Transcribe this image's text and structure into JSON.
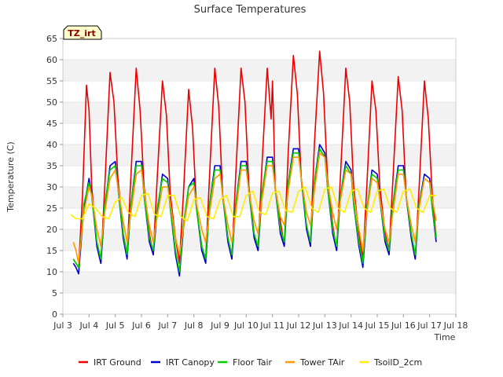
{
  "chart_data": {
    "type": "line",
    "title": "Surface Temperatures",
    "xlabel": "Time",
    "ylabel": "Temperature (C)",
    "station_tag": "TZ_irt",
    "xlim": [
      3,
      18
    ],
    "ylim": [
      0,
      65
    ],
    "grid": "horizontal bands",
    "legend_position": "bottom",
    "x_ticks": [
      {
        "v": 3,
        "label": "Jul 3"
      },
      {
        "v": 4,
        "label": "Jul 4"
      },
      {
        "v": 5,
        "label": "Jul 5"
      },
      {
        "v": 6,
        "label": "Jul 6"
      },
      {
        "v": 7,
        "label": "Jul 7"
      },
      {
        "v": 8,
        "label": "Jul 8"
      },
      {
        "v": 9,
        "label": "Jul 9"
      },
      {
        "v": 10,
        "label": "Jul 10"
      },
      {
        "v": 11,
        "label": "Jul 11"
      },
      {
        "v": 12,
        "label": "Jul 12"
      },
      {
        "v": 13,
        "label": "Jul 13"
      },
      {
        "v": 14,
        "label": "Jul 14"
      },
      {
        "v": 15,
        "label": "Jul 15"
      },
      {
        "v": 16,
        "label": "Jul 16"
      },
      {
        "v": 17,
        "label": "Jul 17"
      },
      {
        "v": 18,
        "label": "Jul 18"
      }
    ],
    "y_ticks": [
      0,
      5,
      10,
      15,
      20,
      25,
      30,
      35,
      40,
      45,
      50,
      55,
      60,
      65
    ],
    "series": [
      {
        "name": "IRT Ground",
        "color": "#ee0000",
        "x": [
          3.4,
          3.5,
          3.6,
          3.75,
          3.9,
          4.0,
          4.1,
          4.3,
          4.45,
          4.6,
          4.8,
          4.95,
          5.1,
          5.3,
          5.45,
          5.6,
          5.8,
          5.95,
          6.1,
          6.3,
          6.45,
          6.6,
          6.8,
          6.95,
          7.1,
          7.3,
          7.45,
          7.6,
          7.8,
          7.95,
          8.1,
          8.3,
          8.45,
          8.6,
          8.8,
          8.95,
          9.1,
          9.3,
          9.45,
          9.6,
          9.8,
          9.95,
          10.1,
          10.3,
          10.45,
          10.6,
          10.8,
          10.95,
          11.0,
          11.05,
          11.1,
          11.3,
          11.45,
          11.6,
          11.8,
          11.95,
          12.1,
          12.3,
          12.45,
          12.6,
          12.8,
          12.95,
          13.1,
          13.3,
          13.45,
          13.6,
          13.8,
          13.95,
          14.1,
          14.3,
          14.45,
          14.6,
          14.8,
          14.95,
          15.1,
          15.3,
          15.45,
          15.6,
          15.8,
          15.95,
          16.1,
          16.3,
          16.45,
          16.6,
          16.8,
          16.95,
          17.1,
          17.25
        ],
        "y": [
          13,
          12,
          11,
          28,
          54,
          48,
          30,
          16,
          12,
          30,
          57,
          50,
          32,
          19,
          14,
          33,
          58,
          48,
          30,
          19,
          14,
          32,
          55,
          47,
          28,
          18,
          12,
          28,
          53,
          44,
          25,
          16,
          13,
          33,
          58,
          49,
          28,
          18,
          13,
          33,
          58,
          50,
          30,
          19,
          15,
          35,
          58,
          46,
          55,
          44,
          30,
          22,
          16,
          38,
          61,
          52,
          32,
          21,
          16,
          40,
          62,
          52,
          32,
          21,
          15,
          33,
          58,
          50,
          30,
          19,
          13,
          30,
          55,
          48,
          30,
          19,
          15,
          32,
          56,
          48,
          28,
          18,
          13,
          30,
          55,
          46,
          28,
          18
        ]
      },
      {
        "name": "IRT Canopy",
        "color": "#0000cc",
        "x": [
          3.4,
          3.5,
          3.6,
          3.8,
          4.0,
          4.1,
          4.3,
          4.45,
          4.6,
          4.8,
          5.0,
          5.1,
          5.3,
          5.45,
          5.6,
          5.8,
          6.0,
          6.1,
          6.3,
          6.45,
          6.6,
          6.8,
          7.0,
          7.1,
          7.3,
          7.45,
          7.6,
          7.8,
          8.0,
          8.1,
          8.3,
          8.45,
          8.6,
          8.8,
          9.0,
          9.1,
          9.3,
          9.45,
          9.6,
          9.8,
          10.0,
          10.1,
          10.3,
          10.45,
          10.6,
          10.8,
          11.0,
          11.1,
          11.3,
          11.45,
          11.6,
          11.8,
          12.0,
          12.1,
          12.3,
          12.45,
          12.6,
          12.8,
          13.0,
          13.1,
          13.3,
          13.45,
          13.6,
          13.8,
          14.0,
          14.1,
          14.3,
          14.45,
          14.6,
          14.8,
          15.0,
          15.1,
          15.3,
          15.45,
          15.6,
          15.8,
          16.0,
          16.1,
          16.3,
          16.45,
          16.6,
          16.8,
          17.0,
          17.1,
          17.25
        ],
        "y": [
          12,
          11,
          9.5,
          25,
          32,
          28,
          16,
          12,
          25,
          35,
          36,
          30,
          18,
          13,
          26,
          36,
          36,
          28,
          17,
          14,
          24,
          33,
          32,
          25,
          14,
          9,
          20,
          30,
          32,
          25,
          15,
          12,
          26,
          35,
          35,
          28,
          17,
          13,
          26,
          36,
          36,
          29,
          18,
          15,
          28,
          37,
          37,
          30,
          19,
          16,
          31,
          39,
          39,
          32,
          20,
          16,
          31,
          40,
          38,
          30,
          19,
          15,
          28,
          36,
          34,
          26,
          16,
          11,
          24,
          34,
          33,
          27,
          17,
          14,
          26,
          35,
          35,
          28,
          18,
          13,
          26,
          33,
          32,
          25,
          17
        ]
      },
      {
        "name": "Floor Tair",
        "color": "#00cc00",
        "x": [
          3.4,
          3.5,
          3.6,
          3.8,
          4.0,
          4.1,
          4.3,
          4.45,
          4.6,
          4.8,
          5.0,
          5.1,
          5.3,
          5.45,
          5.6,
          5.8,
          6.0,
          6.1,
          6.3,
          6.45,
          6.6,
          6.8,
          7.0,
          7.1,
          7.3,
          7.45,
          7.6,
          7.8,
          8.0,
          8.1,
          8.3,
          8.45,
          8.6,
          8.8,
          9.0,
          9.1,
          9.3,
          9.45,
          9.6,
          9.8,
          10.0,
          10.1,
          10.3,
          10.45,
          10.6,
          10.8,
          11.0,
          11.1,
          11.3,
          11.45,
          11.6,
          11.8,
          12.0,
          12.1,
          12.3,
          12.45,
          12.6,
          12.8,
          13.0,
          13.1,
          13.3,
          13.45,
          13.6,
          13.8,
          14.0,
          14.1,
          14.3,
          14.45,
          14.6,
          14.8,
          15.0,
          15.1,
          15.3,
          15.45,
          15.6,
          15.8,
          16.0,
          16.1,
          16.3,
          16.45,
          16.6,
          16.8,
          17.0,
          17.1,
          17.25
        ],
        "y": [
          13,
          12,
          11,
          26,
          31,
          28,
          17,
          13,
          26,
          34,
          35,
          30,
          19,
          14,
          26,
          35,
          35,
          28,
          18,
          15,
          25,
          32,
          31,
          25,
          15,
          10,
          21,
          30,
          31,
          25,
          16,
          13,
          26,
          34,
          34,
          28,
          18,
          14,
          26,
          35,
          35,
          29,
          19,
          16,
          29,
          36,
          36,
          30,
          20,
          17,
          31,
          38,
          38,
          32,
          21,
          17,
          31,
          39,
          37,
          30,
          20,
          16,
          28,
          35,
          33,
          26,
          17,
          12,
          25,
          33,
          32,
          27,
          18,
          15,
          26,
          34,
          34,
          28,
          19,
          14,
          26,
          32,
          31,
          25,
          18
        ]
      },
      {
        "name": "Tower TAir",
        "color": "#ff9900",
        "x": [
          3.4,
          3.5,
          3.6,
          3.8,
          4.0,
          4.1,
          4.3,
          4.45,
          4.6,
          4.8,
          5.0,
          5.1,
          5.3,
          5.45,
          5.6,
          5.8,
          6.0,
          6.1,
          6.3,
          6.45,
          6.6,
          6.8,
          7.0,
          7.1,
          7.3,
          7.45,
          7.6,
          7.8,
          8.0,
          8.1,
          8.3,
          8.45,
          8.6,
          8.8,
          9.0,
          9.1,
          9.3,
          9.45,
          9.6,
          9.8,
          10.0,
          10.1,
          10.3,
          10.45,
          10.6,
          10.8,
          11.0,
          11.1,
          11.3,
          11.45,
          11.6,
          11.8,
          12.0,
          12.1,
          12.3,
          12.45,
          12.6,
          12.8,
          13.0,
          13.1,
          13.3,
          13.45,
          13.6,
          13.8,
          14.0,
          14.1,
          14.3,
          14.45,
          14.6,
          14.8,
          15.0,
          15.1,
          15.3,
          15.45,
          15.6,
          15.8,
          16.0,
          16.1,
          16.3,
          16.45,
          16.6,
          16.8,
          17.0,
          17.1,
          17.25
        ],
        "y": [
          17,
          15,
          12,
          24,
          30,
          28,
          20,
          16,
          24,
          32,
          34,
          30,
          22,
          17,
          24,
          33,
          34,
          29,
          21,
          17,
          23,
          30,
          30,
          26,
          18,
          14,
          20,
          28,
          30,
          26,
          20,
          17,
          24,
          32,
          33,
          28,
          21,
          17,
          24,
          34,
          34,
          29,
          22,
          19,
          27,
          35,
          35,
          30,
          23,
          21,
          29,
          37,
          37,
          32,
          24,
          21,
          29,
          38,
          37,
          31,
          24,
          20,
          27,
          34,
          33,
          28,
          20,
          15,
          24,
          32,
          31,
          27,
          20,
          17,
          24,
          33,
          33,
          28,
          21,
          17,
          25,
          32,
          31,
          27,
          22
        ]
      },
      {
        "name": "TsoilD_2cm",
        "color": "#ffee00",
        "x": [
          3.3,
          3.5,
          3.75,
          4.0,
          4.25,
          4.5,
          4.75,
          5.0,
          5.25,
          5.5,
          5.75,
          6.0,
          6.25,
          6.5,
          6.75,
          7.0,
          7.25,
          7.5,
          7.75,
          8.0,
          8.25,
          8.5,
          8.75,
          9.0,
          9.25,
          9.5,
          9.75,
          10.0,
          10.25,
          10.5,
          10.75,
          11.0,
          11.25,
          11.5,
          11.75,
          12.0,
          12.25,
          12.5,
          12.75,
          13.0,
          13.25,
          13.5,
          13.75,
          14.0,
          14.25,
          14.5,
          14.75,
          15.0,
          15.25,
          15.5,
          15.75,
          16.0,
          16.25,
          16.5,
          16.75,
          17.0,
          17.25
        ],
        "y": [
          23.5,
          22.5,
          22.5,
          26,
          25,
          23,
          22.5,
          26.5,
          27.5,
          24,
          23,
          28,
          28.5,
          23.5,
          23,
          28,
          28,
          23,
          22,
          27,
          27.5,
          23,
          22.5,
          27,
          28,
          23,
          23,
          28,
          29,
          24,
          23.5,
          28.5,
          29,
          24.5,
          24,
          29,
          30,
          25,
          24,
          29.5,
          30,
          25,
          24,
          29,
          29.5,
          25,
          24,
          29,
          29.5,
          25,
          24,
          29,
          29.5,
          25,
          24,
          28,
          28
        ]
      }
    ]
  }
}
